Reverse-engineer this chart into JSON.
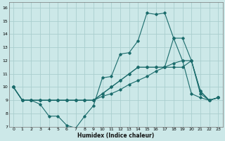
{
  "xlabel": "Humidex (Indice chaleur)",
  "background_color": "#cce8e8",
  "grid_color": "#aacece",
  "line_color": "#1a6b6b",
  "xlim": [
    -0.5,
    23.5
  ],
  "ylim": [
    7,
    16.4
  ],
  "xticks": [
    0,
    1,
    2,
    3,
    4,
    5,
    6,
    7,
    8,
    9,
    10,
    11,
    12,
    13,
    14,
    15,
    16,
    17,
    18,
    19,
    20,
    21,
    22,
    23
  ],
  "yticks": [
    7,
    8,
    9,
    10,
    11,
    12,
    13,
    14,
    15,
    16
  ],
  "line1_x": [
    0,
    1,
    2,
    3,
    4,
    5,
    6,
    7,
    8,
    9,
    10,
    11,
    12,
    13,
    14,
    15,
    16,
    17,
    18,
    19,
    20,
    21,
    22,
    23
  ],
  "line1_y": [
    10,
    9,
    9,
    8.7,
    7.8,
    7.8,
    7.1,
    6.9,
    7.8,
    8.6,
    10.7,
    10.8,
    12.5,
    12.6,
    13.5,
    15.6,
    15.5,
    15.6,
    13.7,
    12,
    9.5,
    9.2,
    9,
    9.2
  ],
  "line2_x": [
    0,
    1,
    2,
    3,
    4,
    5,
    6,
    7,
    8,
    9,
    10,
    11,
    12,
    13,
    14,
    15,
    16,
    17,
    18,
    19,
    20,
    21,
    22,
    23
  ],
  "line2_y": [
    10,
    9,
    9,
    9,
    9,
    9,
    9,
    9,
    9,
    9,
    9.3,
    9.5,
    9.8,
    10.2,
    10.5,
    10.8,
    11.2,
    11.5,
    11.8,
    12,
    12,
    9.7,
    9,
    9.2
  ],
  "line3_x": [
    0,
    1,
    2,
    3,
    4,
    5,
    6,
    7,
    8,
    9,
    10,
    11,
    12,
    13,
    14,
    15,
    16,
    17,
    18,
    19,
    20,
    21,
    22,
    23
  ],
  "line3_y": [
    10,
    9,
    9,
    9,
    9,
    9,
    9,
    9,
    9,
    9,
    9.5,
    10,
    10.5,
    11,
    11.5,
    11.5,
    11.5,
    11.5,
    13.7,
    13.7,
    12,
    9.5,
    9,
    9.2
  ],
  "line4_x": [
    0,
    1,
    2,
    3,
    4,
    5,
    6,
    7,
    8,
    9,
    10,
    11,
    12,
    13,
    14,
    15,
    16,
    17,
    18,
    19,
    20,
    21,
    22,
    23
  ],
  "line4_y": [
    10,
    9,
    9,
    9,
    9,
    9,
    9,
    9,
    9,
    9,
    9.5,
    10,
    10.5,
    11,
    11.5,
    11.5,
    11.5,
    11.5,
    11.5,
    11.5,
    12,
    9.7,
    9,
    9.2
  ]
}
